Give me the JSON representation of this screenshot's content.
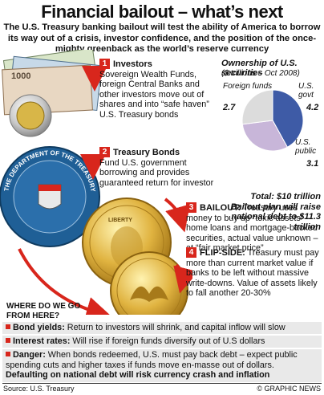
{
  "title": "Financial bailout – what’s next",
  "intro": "The U.S. Treasury banking bailout will test the ability of America to borrow its way out of a crisis, investor confidence, and the position of the once-mighty greenback as the world’s reserve currency",
  "sections": [
    {
      "num": "1",
      "title": "Investors",
      "text": "Sovereign Wealth Funds, foreign Central Banks and other investors move out of shares and into “safe haven” U.S. Treasury bonds"
    },
    {
      "num": "2",
      "title": "Treasury Bonds",
      "text": "Fund U.S. government borrowing and provides guaranteed return for investor"
    },
    {
      "num": "3",
      "title": "BAILOUT:",
      "text": "Treasury uses money to buy up “toxic assets” – home loans and mortgage-backed securities, actual value unknown – at “fair market price”"
    },
    {
      "num": "4",
      "title": "FLIP-SIDE:",
      "text": "Treasury must pay more than current market value if banks to be left without massive write-downs. Value of assets likely to fall another 20-30%"
    }
  ],
  "chart_data": {
    "type": "pie",
    "title": "Ownership of U.S. securities",
    "subtitle": "($ trillions – Oct 2008)",
    "slices": [
      {
        "label": "U.S. govt",
        "value": 4.2,
        "color": "#3e5ba6"
      },
      {
        "label": "U.S. public",
        "value": 3.1,
        "color": "#c8b6d9"
      },
      {
        "label": "Foreign funds",
        "value": 2.7,
        "color": "#dcdcdc"
      }
    ],
    "total_text": "Total: $10 trillion",
    "note": "Bailout plan will raise national debt to $11.3 trillion"
  },
  "where": "WHERE DO WE GO FROM HERE?",
  "bands": [
    {
      "label": "Bond yields:",
      "text": "Return to investors will shrink, and capital inflow will slow"
    },
    {
      "label": "Interest rates:",
      "text": "Will rise if foreign funds diversify out of U.S dollars"
    },
    {
      "label": "Danger:",
      "text": "When bonds redeemed, U.S. must pay back debt – expect public spending cuts and higher taxes if funds move en-masse out of dollars.",
      "bold_text": "Defaulting on national debt will risk currency crash and inflation"
    }
  ],
  "source": "Source: U.S. Treasury",
  "credit": "© GRAPHIC NEWS",
  "seal_text": "THE DEPARTMENT OF THE TREASURY",
  "note_text": "1000",
  "coin_text": "LIBERTY"
}
